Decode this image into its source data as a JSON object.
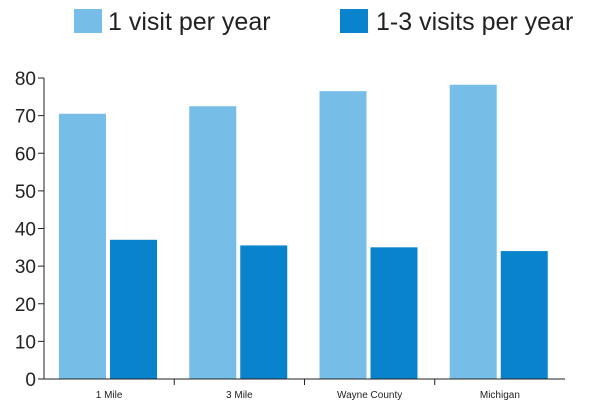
{
  "chart_data": {
    "type": "bar",
    "categories": [
      "1 Mile",
      "3 Mile",
      "Wayne County",
      "Michigan"
    ],
    "series": [
      {
        "name": "1 visit per year",
        "values": [
          70.5,
          72.5,
          76.5,
          78.2
        ],
        "color": "#76bde8"
      },
      {
        "name": "1-3 visits per year",
        "values": [
          37.0,
          35.5,
          35.0,
          34.0
        ],
        "color": "#0984cc"
      }
    ],
    "title": "",
    "xlabel": "",
    "ylabel": "",
    "ylim": [
      0,
      80
    ],
    "yticks": [
      0,
      10,
      20,
      30,
      40,
      50,
      60,
      70,
      80
    ],
    "grid": false,
    "legend_position": "top"
  }
}
